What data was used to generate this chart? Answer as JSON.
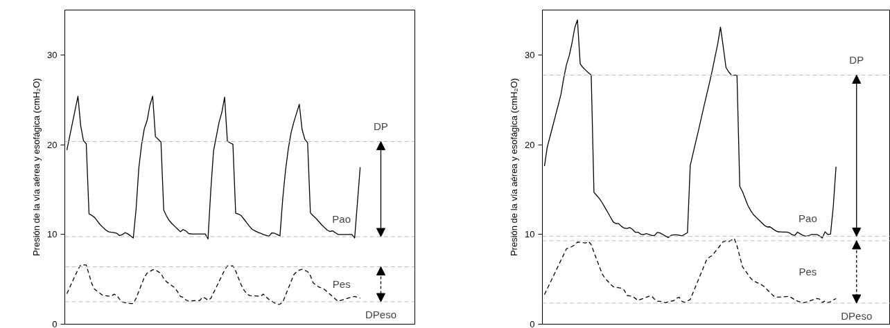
{
  "chart_data": [
    {
      "type": "line",
      "ylabel": "Presión de la vía aérea y esofágica (cmH₂O)",
      "categories": [
        null,
        null,
        null,
        null,
        null,
        null,
        null,
        null,
        null,
        null,
        null,
        null,
        null,
        null,
        null,
        null,
        null,
        null,
        null,
        null,
        null,
        null,
        null,
        null,
        null,
        null,
        null,
        null,
        null,
        null,
        null,
        null,
        null,
        null,
        null,
        null,
        null,
        null,
        null,
        null,
        null,
        null,
        null,
        null,
        null,
        null,
        null,
        null,
        null,
        null,
        null,
        null,
        null,
        null,
        null,
        null,
        null,
        null,
        null,
        null,
        null,
        null,
        null,
        null,
        null,
        null,
        null,
        null,
        null,
        null,
        null,
        null,
        null,
        null,
        null,
        null,
        null,
        null,
        null,
        null,
        null,
        null,
        null,
        null,
        null,
        null,
        null,
        null,
        null,
        null,
        null,
        null,
        null,
        null,
        null,
        null,
        null,
        null,
        null,
        null,
        null,
        null,
        null,
        null,
        null,
        null,
        null
      ],
      "ylim": [
        0,
        35
      ],
      "yticks": [
        0,
        10,
        20,
        30
      ],
      "tick_labels": "y",
      "grid": false,
      "ref_lines": [
        {
          "axis": "y",
          "value": 20.35,
          "color": "#bbbbbb",
          "line_style": "dashed"
        },
        {
          "axis": "y",
          "value": 9.75,
          "color": "#bbbbbb",
          "line_style": "dashed"
        },
        {
          "axis": "y",
          "value": 6.4,
          "color": "#bbbbbb",
          "line_style": "dashed"
        },
        {
          "axis": "y",
          "value": 2.5,
          "color": "#bbbbbb",
          "line_style": "dashed"
        }
      ],
      "annotations": [
        "DP",
        "Pao",
        "Pes",
        "DPeso"
      ],
      "series": [
        {
          "color": "#000000",
          "line_style": "solid",
          "values": [
            19.4,
            20.9,
            22.4,
            23.9,
            25.4,
            22.1,
            20.44,
            20.1,
            12.3,
            12.13,
            11.9,
            11.5,
            11.1,
            10.8,
            10.5,
            10.3,
            10.24,
            10.2,
            10.13,
            9.87,
            9.97,
            10.2,
            10.07,
            9.84,
            9.6,
            12.8,
            17.4,
            20.0,
            21.8,
            22.7,
            24.4,
            25.4,
            20.9,
            20.6,
            20.3,
            12.7,
            12.06,
            11.54,
            11.2,
            10.9,
            10.6,
            10.3,
            10.54,
            10.4,
            10.1,
            10.05,
            10.05,
            10.05,
            10.05,
            10.05,
            10.05,
            9.5,
            14.9,
            19.3,
            20.9,
            22.5,
            23.6,
            25.3,
            20.4,
            20.2,
            20.05,
            12.36,
            12.27,
            12.1,
            11.7,
            11.3,
            10.9,
            10.56,
            10.4,
            10.24,
            10.12,
            10.0,
            9.9,
            9.8,
            10.16,
            10.14,
            9.99,
            9.84,
            13.95,
            17.1,
            19.5,
            21.3,
            22.5,
            23.5,
            24.5,
            21.7,
            20.6,
            20.2,
            12.4,
            12.08,
            11.8,
            11.45,
            11.1,
            10.8,
            10.5,
            10.33,
            10.4,
            10.2,
            10.0,
            10.0,
            10.0,
            10.0,
            10.0,
            10.0,
            9.6,
            13.55,
            17.5
          ]
        },
        {
          "color": "#000000",
          "line_style": "dashed",
          "values": [
            3.4,
            4.07,
            4.75,
            5.42,
            6.09,
            6.6,
            6.6,
            6.6,
            5.56,
            4.52,
            3.89,
            3.66,
            3.43,
            3.2,
            3.17,
            3.13,
            3.1,
            3.34,
            3.22,
            2.8,
            2.47,
            2.4,
            2.33,
            2.3,
            2.3,
            2.88,
            3.66,
            4.44,
            5.21,
            5.69,
            5.87,
            6.06,
            6.05,
            5.85,
            5.65,
            5.08,
            4.73,
            4.51,
            4.28,
            4.06,
            3.61,
            3.1,
            3.0,
            2.7,
            2.57,
            2.6,
            2.63,
            2.61,
            2.64,
            3.0,
            2.9,
            2.67,
            2.87,
            3.5,
            4.13,
            4.76,
            5.39,
            6.03,
            6.5,
            6.5,
            6.5,
            5.92,
            5.15,
            4.38,
            3.8,
            3.4,
            3.19,
            3.17,
            3.15,
            3.13,
            3.1,
            3.35,
            3.05,
            2.75,
            2.57,
            2.38,
            2.2,
            2.23,
            2.44,
            3.21,
            3.97,
            4.74,
            5.51,
            5.84,
            6.02,
            6.12,
            5.99,
            5.86,
            5.4,
            4.6,
            4.38,
            4.15,
            4.03,
            3.9,
            3.63,
            3.36,
            3.09,
            2.82,
            2.55,
            2.65,
            2.75,
            2.84,
            2.93,
            3.01,
            3.1,
            3.0,
            2.9
          ]
        }
      ]
    },
    {
      "type": "line",
      "ylabel": "Presión de la vía aérea y esofágica (cmH₂O)",
      "categories": [
        null,
        null,
        null,
        null,
        null,
        null,
        null,
        null,
        null,
        null,
        null,
        null,
        null,
        null,
        null,
        null,
        null,
        null,
        null,
        null,
        null,
        null,
        null,
        null,
        null,
        null,
        null,
        null,
        null,
        null,
        null,
        null,
        null,
        null,
        null,
        null,
        null,
        null,
        null,
        null,
        null,
        null,
        null,
        null,
        null,
        null,
        null,
        null,
        null,
        null,
        null,
        null,
        null,
        null,
        null,
        null,
        null,
        null,
        null,
        null,
        null,
        null,
        null,
        null,
        null,
        null,
        null,
        null,
        null,
        null,
        null,
        null,
        null,
        null,
        null,
        null,
        null,
        null,
        null,
        null,
        null,
        null,
        null,
        null,
        null,
        null,
        null,
        null,
        null,
        null,
        null,
        null,
        null,
        null,
        null,
        null,
        null,
        null,
        null,
        null,
        null,
        null,
        null,
        null,
        null,
        null,
        null
      ],
      "ylim": [
        0,
        35
      ],
      "yticks": [
        0,
        10,
        20,
        30
      ],
      "tick_labels": "y",
      "grid": false,
      "ref_lines": [
        {
          "axis": "y",
          "value": 27.75,
          "color": "#bbbbbb",
          "line_style": "dashed"
        },
        {
          "axis": "y",
          "value": 9.8,
          "color": "#bbbbbb",
          "line_style": "dashed"
        },
        {
          "axis": "y",
          "value": 9.3,
          "color": "#bbbbbb",
          "line_style": "dashed"
        },
        {
          "axis": "y",
          "value": 2.35,
          "color": "#bbbbbb",
          "line_style": "dashed"
        }
      ],
      "annotations": [
        "DP",
        "Pao",
        "Pes",
        "DPeso"
      ],
      "series": [
        {
          "color": "#000000",
          "line_style": "solid",
          "values": [
            17.6,
            19.7,
            20.87,
            22.05,
            23.24,
            24.4,
            25.6,
            27.4,
            28.9,
            29.9,
            31.3,
            33.0,
            33.9,
            29.0,
            28.6,
            28.3,
            28.0,
            27.75,
            14.7,
            14.34,
            13.98,
            13.53,
            13.0,
            12.47,
            11.93,
            11.4,
            11.2,
            11.2,
            10.9,
            10.7,
            10.66,
            10.77,
            10.56,
            10.25,
            10.25,
            10.04,
            9.97,
            10.1,
            9.99,
            9.88,
            9.88,
            10.22,
            10.17,
            10.0,
            9.82,
            9.65,
            9.89,
            9.95,
            9.95,
            9.91,
            9.84,
            10.02,
            10.2,
            17.68,
            19.0,
            20.3,
            21.6,
            22.95,
            24.3,
            25.6,
            26.9,
            28.27,
            29.76,
            31.24,
            33.1,
            30.9,
            28.6,
            28.1,
            27.75,
            27.75,
            27.75,
            15.36,
            14.76,
            13.98,
            13.2,
            12.65,
            12.2,
            11.9,
            11.6,
            11.3,
            11.0,
            10.83,
            10.85,
            10.63,
            10.41,
            10.29,
            10.28,
            10.27,
            10.26,
            10.19,
            9.97,
            9.89,
            10.25,
            10.07,
            9.89,
            9.8,
            9.85,
            10.0,
            10.0,
            10.0,
            9.84,
            9.6,
            10.3,
            10.0,
            10.03,
            13.1,
            17.55
          ]
        },
        {
          "color": "#000000",
          "line_style": "dashed",
          "values": [
            3.3,
            3.94,
            4.57,
            5.21,
            5.85,
            6.49,
            7.13,
            7.76,
            8.4,
            8.53,
            8.65,
            8.83,
            9.15,
            9.12,
            9.08,
            9.05,
            9.22,
            8.87,
            8.0,
            7.2,
            6.4,
            5.6,
            5.14,
            4.8,
            4.46,
            4.18,
            4.12,
            4.06,
            4.0,
            3.8,
            3.2,
            3.15,
            3.1,
            2.88,
            2.65,
            2.77,
            2.88,
            3.0,
            3.11,
            3.12,
            2.79,
            2.55,
            2.55,
            2.49,
            2.38,
            2.5,
            2.58,
            2.62,
            2.89,
            2.99,
            2.56,
            2.43,
            2.59,
            2.75,
            3.49,
            4.24,
            4.98,
            5.73,
            6.47,
            7.21,
            7.48,
            7.65,
            8.04,
            8.43,
            8.81,
            9.2,
            9.26,
            9.2,
            9.38,
            9.56,
            8.73,
            7.56,
            6.4,
            5.97,
            5.54,
            5.11,
            4.83,
            4.68,
            4.53,
            4.38,
            4.15,
            3.84,
            3.54,
            3.23,
            3.0,
            3.02,
            3.04,
            3.06,
            3.08,
            3.1,
            2.92,
            2.71,
            2.58,
            2.48,
            2.38,
            2.44,
            2.54,
            2.65,
            2.76,
            2.87,
            2.8,
            2.4,
            2.6,
            2.4,
            2.5,
            2.7,
            2.85
          ]
        }
      ]
    }
  ]
}
